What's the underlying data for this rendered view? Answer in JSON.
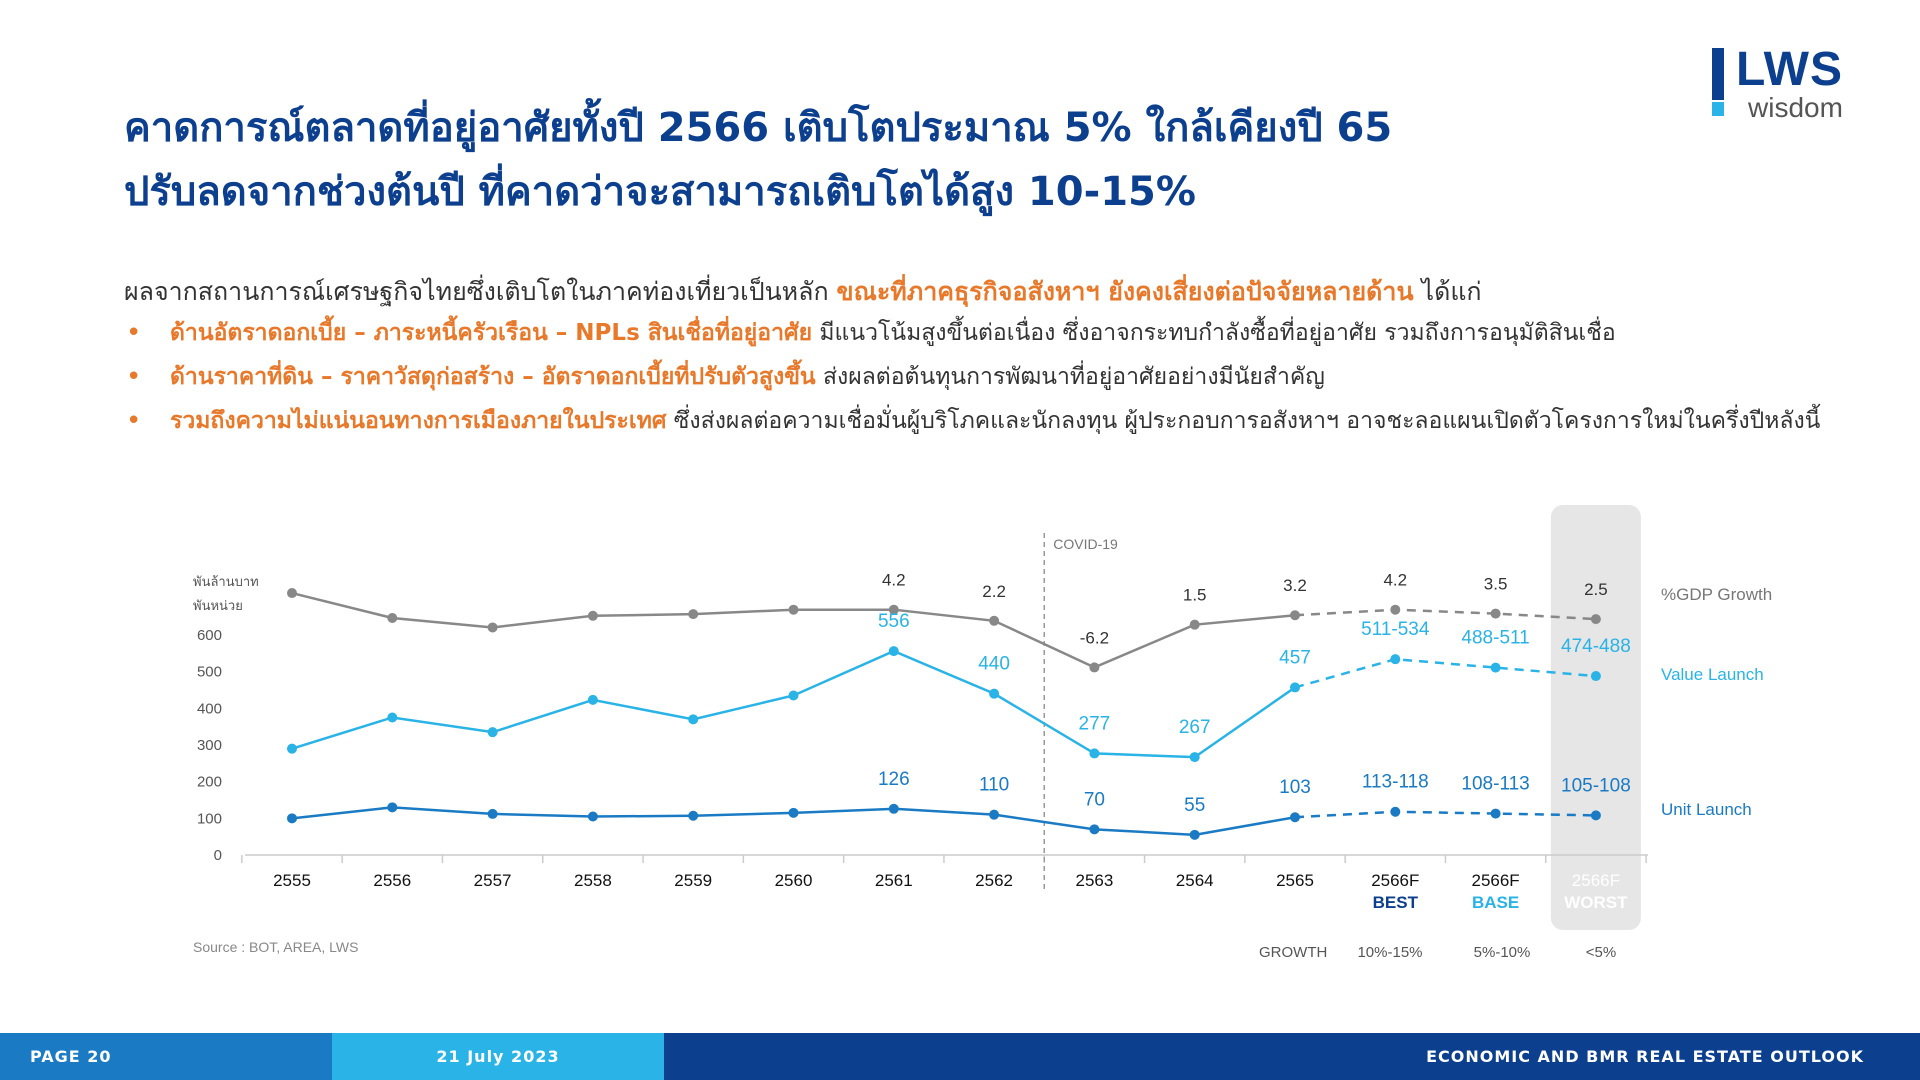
{
  "logo": {
    "name": "LWS",
    "tagline": "wisdom"
  },
  "title": {
    "line1": "คาดการณ์ตลาดที่อยู่อาศัยทั้งปี 2566 เติบโตประมาณ 5% ใกล้เคียงปี 65",
    "line2": "ปรับลดจากช่วงต้นปี ที่คาดว่าจะสามารถเติบโตได้สูง 10-15%"
  },
  "intro": {
    "text": "ผลจากสถานการณ์เศรษฐกิจไทยซึ่งเติบโตในภาคท่องเที่ยวเป็นหลัก ",
    "highlight": "ขณะที่ภาคธุรกิจอสังหาฯ ยังคงเสี่ยงต่อปัจจัยหลายด้าน",
    "tail": " ได้แก่"
  },
  "bullets": [
    {
      "highlight": "ด้านอัตราดอกเบี้ย – ภาระหนี้ครัวเรือน – NPLs สินเชื่อที่อยู่อาศัย",
      "text": " มีแนวโน้มสูงขึ้นต่อเนื่อง ซึ่งอาจกระทบกำลังซื้อที่อยู่อาศัย รวมถึงการอนุมัติสินเชื่อ"
    },
    {
      "highlight": "ด้านราคาที่ดิน – ราคาวัสดุก่อสร้าง – อัตราดอกเบี้ยที่ปรับตัวสูงขึ้น",
      "text": " ส่งผลต่อต้นทุนการพัฒนาที่อยู่อาศัยอย่างมีนัยสำคัญ"
    },
    {
      "highlight": "รวมถึงความไม่แน่นอนทางการเมืองภายในประเทศ",
      "text": " ซึ่งส่งผลต่อความเชื่อมั่นผู้บริโภคและนักลงทุน ผู้ประกอบการอสังหาฯ อาจชะลอแผนเปิดตัวโครงการใหม่ในครึ่งปีหลังนี้"
    }
  ],
  "chart_data": {
    "type": "line",
    "categories": [
      "2555",
      "2556",
      "2557",
      "2558",
      "2559",
      "2560",
      "2561",
      "2562",
      "2563",
      "2564",
      "2565",
      "2566F",
      "2566F",
      "2566F"
    ],
    "scenario_labels": [
      "",
      "",
      "",
      "",
      "",
      "",
      "",
      "",
      "",
      "",
      "",
      "BEST",
      "BASE",
      "WORST"
    ],
    "y_unit_labels": [
      "พันล้านบาท",
      "พันหน่วย"
    ],
    "y_ticks": [
      0,
      100,
      200,
      300,
      400,
      500,
      600
    ],
    "ylim": [
      0,
      600
    ],
    "covid_label": "COVID-19",
    "series": [
      {
        "name": "%GDP Growth",
        "color": "#888888",
        "forecast_from": 10,
        "values": [
          7.2,
          2.7,
          1.0,
          3.1,
          3.4,
          4.2,
          4.2,
          2.2,
          -6.2,
          1.5,
          3.2,
          4.2,
          3.5,
          2.5
        ],
        "labels": [
          "",
          "",
          "",
          "",
          "",
          "",
          "4.2",
          "2.2",
          "-6.2",
          "1.5",
          "3.2",
          "4.2",
          "3.5",
          "2.5"
        ]
      },
      {
        "name": "Value Launch",
        "color": "#29b3e6",
        "forecast_from": 10,
        "values": [
          290,
          375,
          335,
          423,
          370,
          435,
          556,
          440,
          277,
          267,
          457,
          534,
          511,
          488
        ],
        "labels": [
          "",
          "",
          "",
          "",
          "",
          "",
          "556",
          "440",
          "277",
          "267",
          "457",
          "511-534",
          "488-511",
          "474-488"
        ]
      },
      {
        "name": "Unit Launch",
        "color": "#1a7bc4",
        "forecast_from": 10,
        "values": [
          100,
          130,
          112,
          105,
          107,
          115,
          126,
          110,
          70,
          55,
          103,
          118,
          113,
          108
        ],
        "labels": [
          "",
          "",
          "",
          "",
          "",
          "",
          "126",
          "110",
          "70",
          "55",
          "103",
          "113-118",
          "108-113",
          "105-108"
        ]
      }
    ],
    "growth_label": "GROWTH",
    "growth_values": [
      "10%-15%",
      "5%-10%",
      "<5%"
    ],
    "source": "Source : BOT, AREA, LWS"
  },
  "colors": {
    "navy": "#0d3f8f",
    "blue": "#1a7bc4",
    "cyan": "#29b3e6",
    "orange": "#e8782a",
    "gray": "#888888"
  },
  "footer": {
    "page": "PAGE 20",
    "date": "21 July 2023",
    "report": "ECONOMIC AND BMR REAL ESTATE OUTLOOK"
  }
}
